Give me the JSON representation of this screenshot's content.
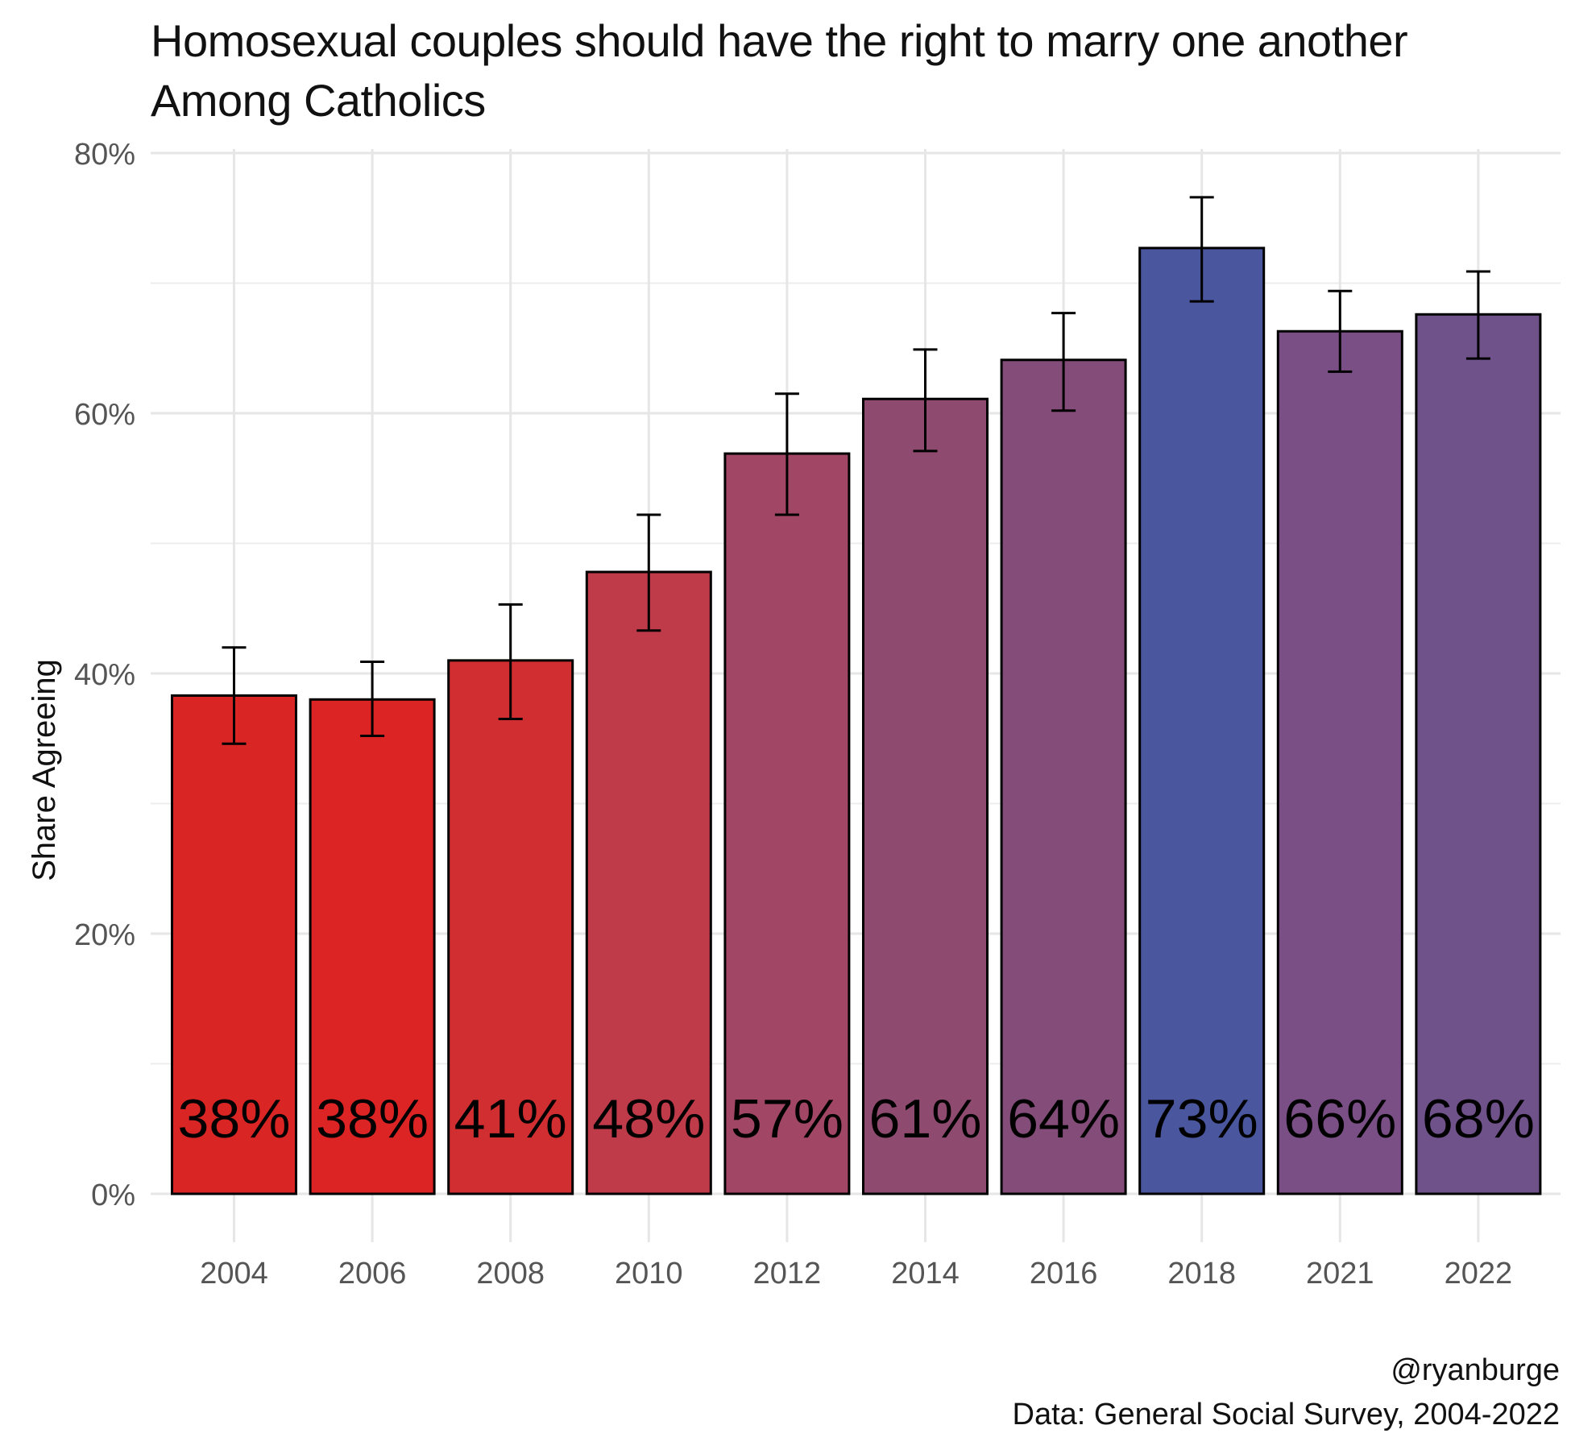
{
  "chart_data": {
    "type": "bar",
    "title": "Homosexual couples should have the right to marry one another",
    "subtitle": "Among Catholics",
    "xlabel": "",
    "ylabel": "Share Agreeing",
    "categories": [
      "2004",
      "2006",
      "2008",
      "2010",
      "2012",
      "2014",
      "2016",
      "2018",
      "2021",
      "2022"
    ],
    "values": [
      0.383,
      0.38,
      0.41,
      0.478,
      0.569,
      0.611,
      0.641,
      0.727,
      0.663,
      0.676
    ],
    "error_low": [
      0.346,
      0.352,
      0.365,
      0.433,
      0.522,
      0.571,
      0.602,
      0.686,
      0.632,
      0.642
    ],
    "error_high": [
      0.42,
      0.409,
      0.453,
      0.522,
      0.615,
      0.649,
      0.677,
      0.766,
      0.694,
      0.709
    ],
    "data_labels": [
      "38%",
      "38%",
      "41%",
      "48%",
      "57%",
      "61%",
      "64%",
      "73%",
      "66%",
      "68%"
    ],
    "bar_colors": [
      "#DA2525",
      "#DC2425",
      "#D12E31",
      "#BF3B4A",
      "#A24665",
      "#8E4A6F",
      "#834C79",
      "#4A569E",
      "#7A4F85",
      "#70528A"
    ],
    "ylim": [
      0,
      0.8
    ],
    "yticks": [
      0,
      0.2,
      0.4,
      0.6,
      0.8
    ],
    "ytick_labels": [
      "0%",
      "20%",
      "40%",
      "60%",
      "80%"
    ],
    "grid": true
  },
  "caption": {
    "line1": "@ryanburge",
    "line2": "Data: General Social Survey, 2004-2022"
  }
}
